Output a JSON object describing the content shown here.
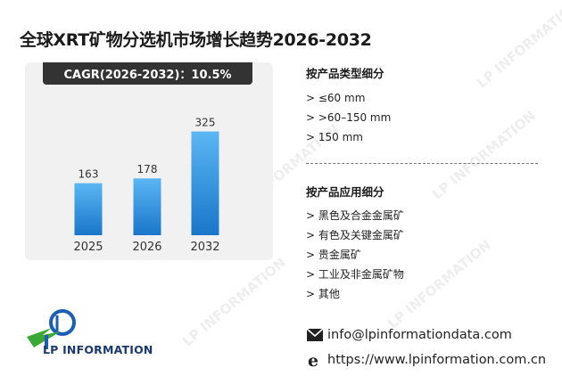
{
  "title": "全球XRT矿物分选机市场增长趋势2026-2032",
  "cagr_label": "CAGR(2026-2032)：10.5%",
  "chart_data": {
    "type": "bar",
    "categories": [
      "2025",
      "2026",
      "2032"
    ],
    "values": [
      163,
      178,
      325
    ],
    "ylim": [
      0,
      340
    ],
    "grid": false,
    "legend": "none",
    "bar_color_top": "#5bb6f3",
    "bar_color_bottom": "#1976c9"
  },
  "product_type": {
    "title": "按产品类型细分",
    "items": [
      "> ≤60 mm",
      "> >60–150 mm",
      "> 150 mm"
    ]
  },
  "application": {
    "title": "按产品应用细分",
    "items": [
      "> 黑色及合金金属矿",
      "> 有色及关键金属矿",
      "> 贵金属矿",
      "> 工业及非金属矿物",
      "> 其他"
    ]
  },
  "contact": {
    "email": "info@lpinformationdata.com",
    "website": "https://www.lpinformation.com.cn"
  },
  "logo": {
    "text": "LP INFORMATION",
    "colors": {
      "blue": "#1a5fb4",
      "green": "#3aa935"
    }
  },
  "watermark": "LP INFORMATION"
}
